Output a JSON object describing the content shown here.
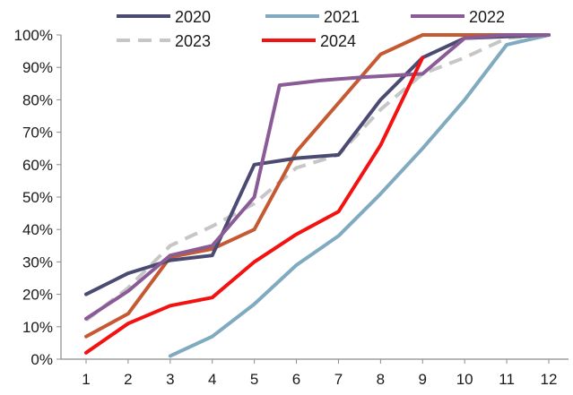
{
  "chart_data": {
    "type": "line",
    "title": "",
    "xlabel": "",
    "ylabel": "",
    "x": [
      1,
      2,
      3,
      4,
      5,
      6,
      7,
      8,
      9,
      10,
      11,
      12
    ],
    "xlim": [
      1,
      12
    ],
    "ylim": [
      0,
      100
    ],
    "y_ticks": [
      "0%",
      "10%",
      "20%",
      "30%",
      "40%",
      "50%",
      "60%",
      "70%",
      "80%",
      "90%",
      "100%"
    ],
    "grid": false,
    "legend_position": "top",
    "series": [
      {
        "name": "2020",
        "color": "#4b4a72",
        "dash": "solid",
        "points": [
          [
            1,
            20
          ],
          [
            2,
            26.5
          ],
          [
            3,
            30.5
          ],
          [
            4,
            32
          ],
          [
            5,
            60
          ],
          [
            6,
            62
          ],
          [
            7,
            63
          ],
          [
            8,
            80
          ],
          [
            9,
            93
          ],
          [
            10,
            99
          ],
          [
            11,
            99.5
          ],
          [
            12,
            100
          ]
        ]
      },
      {
        "name": "2021",
        "color": "#7faabf",
        "dash": "solid",
        "points": [
          [
            3,
            1
          ],
          [
            4,
            7
          ],
          [
            5,
            17
          ],
          [
            6,
            29
          ],
          [
            7,
            38
          ],
          [
            8,
            51
          ],
          [
            9,
            65
          ],
          [
            10,
            80
          ],
          [
            11,
            97
          ],
          [
            12,
            100
          ]
        ]
      },
      {
        "name": "2022",
        "color": "#8a5b96",
        "dash": "solid",
        "points": [
          [
            1,
            12.5
          ],
          [
            2,
            21
          ],
          [
            3,
            32
          ],
          [
            4,
            35
          ],
          [
            5,
            50
          ],
          [
            5.6,
            84.5
          ],
          [
            6.6,
            86
          ],
          [
            7.6,
            87
          ],
          [
            9,
            88
          ],
          [
            10,
            99
          ],
          [
            11,
            100
          ],
          [
            12,
            100
          ]
        ]
      },
      {
        "name": "2023",
        "color": "#c6c6c6",
        "dash": "dashed",
        "points": [
          [
            1,
            12
          ],
          [
            2,
            22
          ],
          [
            3,
            35
          ],
          [
            4,
            41
          ],
          [
            5,
            48
          ],
          [
            6,
            59
          ],
          [
            7,
            63
          ],
          [
            8,
            77
          ],
          [
            9,
            88
          ],
          [
            10,
            93
          ],
          [
            11,
            99
          ],
          [
            12,
            100
          ]
        ]
      },
      {
        "name": "2024",
        "color": "#f21212",
        "dash": "solid",
        "points": [
          [
            1,
            2
          ],
          [
            2,
            11
          ],
          [
            3,
            16.5
          ],
          [
            4,
            19
          ],
          [
            5,
            30
          ],
          [
            6,
            38.5
          ],
          [
            7,
            45.5
          ],
          [
            8,
            66
          ],
          [
            9,
            93
          ]
        ]
      },
      {
        "name": "",
        "color": "#c55a32",
        "dash": "solid",
        "points": [
          [
            1,
            7
          ],
          [
            2,
            14
          ],
          [
            3,
            31.5
          ],
          [
            4,
            34
          ],
          [
            5,
            40
          ],
          [
            6,
            64
          ],
          [
            7,
            79
          ],
          [
            8,
            94
          ],
          [
            9,
            100
          ],
          [
            10,
            100
          ],
          [
            11,
            100
          ],
          [
            12,
            100
          ]
        ]
      }
    ]
  }
}
